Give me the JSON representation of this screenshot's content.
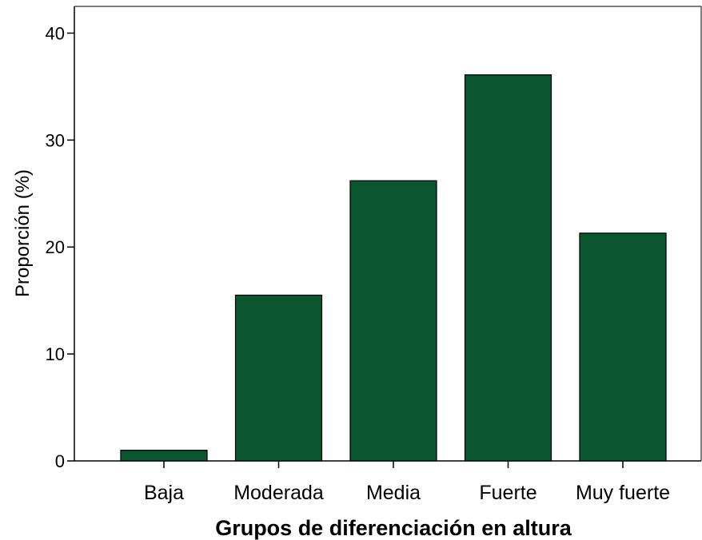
{
  "chart_data": {
    "type": "bar",
    "categories": [
      "Baja",
      "Moderada",
      "Media",
      "Fuerte",
      "Muy fuerte"
    ],
    "values": [
      1.0,
      15.5,
      26.2,
      36.1,
      21.3
    ],
    "title": "",
    "xlabel": "Grupos de diferenciación en altura",
    "ylabel": "Proporción (%)",
    "ylim": [
      0,
      42.5
    ],
    "yticks": [
      0,
      10,
      20,
      30,
      40
    ],
    "grid": false,
    "bar_color": "#0b5630",
    "bar_edge_color": "#000000"
  }
}
